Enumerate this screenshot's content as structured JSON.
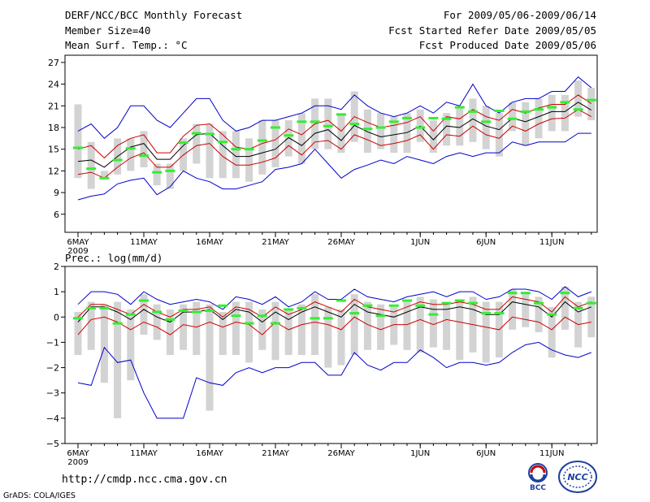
{
  "header": {
    "title": "DERF/NCC/BCC Monthly Forecast",
    "member_size": "Member Size=40",
    "variable1": "Mean Surf. Temp.: °C",
    "period": "For 2009/05/06-2009/06/14",
    "started": "Fcst Started Refer Date 2009/05/05",
    "produced": "Fcst Produced Date 2009/05/06"
  },
  "footer": {
    "url": "http://cmdp.ncc.cma.gov.cn",
    "grads": "GrADS: COLA/IGES",
    "logo1_text": "BCC",
    "logo2_text": "NCC"
  },
  "colors": {
    "envelope": "#0000cc",
    "spread": "#cc0000",
    "mean": "#000000",
    "bar": "#d3d3d3",
    "obs": "#33ee33"
  },
  "chart_data": [
    {
      "type": "line",
      "name": "temperature",
      "title": "Mean Surf. Temp.: °C",
      "ylim": [
        3.5,
        28
      ],
      "yticks": [
        6,
        9,
        12,
        15,
        18,
        21,
        24,
        27
      ],
      "xrange": [
        0,
        40
      ],
      "xticks": [
        {
          "day": 0,
          "label": "6MAY",
          "label2": "2009"
        },
        {
          "day": 5,
          "label": "11MAY"
        },
        {
          "day": 10,
          "label": "16MAY"
        },
        {
          "day": 15,
          "label": "21MAY"
        },
        {
          "day": 20,
          "label": "26MAY"
        },
        {
          "day": 26,
          "label": "1JUN"
        },
        {
          "day": 31,
          "label": "6JUN"
        },
        {
          "day": 36,
          "label": "11JUN"
        }
      ],
      "x": [
        0,
        1,
        2,
        3,
        4,
        5,
        6,
        7,
        8,
        9,
        10,
        11,
        12,
        13,
        14,
        15,
        16,
        17,
        18,
        19,
        20,
        21,
        22,
        23,
        24,
        25,
        26,
        27,
        28,
        29,
        30,
        31,
        32,
        33,
        34,
        35,
        36,
        37,
        38,
        39
      ],
      "series": [
        {
          "name": "max",
          "values": [
            17.5,
            18.5,
            16.5,
            18,
            21,
            21,
            19,
            18,
            20,
            22,
            22,
            19,
            17.5,
            18,
            19,
            19,
            19.5,
            20,
            21,
            21,
            20.5,
            22.5,
            21,
            20,
            19.5,
            20,
            21,
            20,
            21.5,
            21,
            24,
            21,
            20,
            21.5,
            22,
            22,
            23,
            23,
            25,
            23.5
          ]
        },
        {
          "name": "upper",
          "values": [
            15,
            15.5,
            13.8,
            15.5,
            16.5,
            17,
            14.5,
            14.5,
            16.8,
            18.3,
            18.5,
            17,
            15.3,
            15,
            15.8,
            16.3,
            17.8,
            17,
            18.5,
            19,
            17.5,
            19.5,
            18.7,
            18,
            18.3,
            18.7,
            19.5,
            17.5,
            19.5,
            19.2,
            20.5,
            19.5,
            19,
            20.5,
            20,
            20.7,
            21.2,
            21.2,
            22.5,
            21.3
          ]
        },
        {
          "name": "mean",
          "values": [
            13.3,
            13.5,
            12.5,
            14,
            15.3,
            15.8,
            13.6,
            13.6,
            15.5,
            17,
            17.2,
            15.5,
            14,
            14,
            14.5,
            15,
            16.6,
            15.5,
            17.2,
            17.7,
            16.2,
            18.3,
            17.4,
            16.7,
            17,
            17.3,
            18.2,
            16.3,
            18.2,
            18,
            19.2,
            18.2,
            17.7,
            19.3,
            18.8,
            19.5,
            20.2,
            20.2,
            21.5,
            20.4
          ]
        },
        {
          "name": "lower",
          "values": [
            11.5,
            11.8,
            11,
            12.5,
            13.8,
            14.5,
            12.5,
            12.5,
            14.2,
            15.5,
            15.8,
            14,
            12.8,
            12.8,
            13.2,
            13.8,
            15.5,
            14.2,
            16,
            16.2,
            15,
            17,
            16.3,
            15.5,
            15.8,
            16.2,
            17,
            15,
            17,
            16.8,
            18.2,
            17,
            16.5,
            18.2,
            17.5,
            18.5,
            19.2,
            19.3,
            20.5,
            19.5
          ]
        },
        {
          "name": "min",
          "values": [
            8,
            8.5,
            8.8,
            10.2,
            10.7,
            11,
            8.7,
            9.8,
            12,
            11,
            10.5,
            9.5,
            9.5,
            10,
            10.5,
            12.2,
            12.5,
            13,
            15,
            13,
            11,
            12.2,
            12.8,
            13.5,
            13,
            14,
            13.5,
            13,
            14,
            14.5,
            14,
            14.5,
            14.5,
            16,
            15.5,
            16,
            16,
            16,
            17.2,
            17.2
          ]
        },
        {
          "name": "bar_top",
          "values": [
            21.2,
            16,
            12,
            16.5,
            16.5,
            17.5,
            13,
            13,
            16.5,
            18.5,
            18.5,
            17.5,
            17.5,
            16.5,
            19,
            19,
            19,
            20,
            22,
            22,
            20,
            23,
            20.5,
            20,
            19.5,
            20,
            20.5,
            19,
            20,
            21,
            22,
            21,
            20,
            21.5,
            21.5,
            22,
            22.5,
            22.5,
            24.5,
            23.5
          ]
        },
        {
          "name": "bar_bottom",
          "values": [
            11,
            9.5,
            11,
            11.5,
            12,
            12.5,
            10,
            9.5,
            12,
            13,
            11,
            11,
            11,
            10.5,
            11.5,
            12.5,
            14,
            13,
            15,
            15,
            14.5,
            16,
            14.5,
            15,
            14.5,
            14.5,
            16,
            14.5,
            15.5,
            15.5,
            16,
            15,
            14,
            17.5,
            15.5,
            16.5,
            17.5,
            17.5,
            19.5,
            19
          ]
        },
        {
          "name": "obs",
          "values": [
            15.2,
            12.3,
            11,
            13.5,
            15.1,
            14.1,
            11.8,
            12,
            15.9,
            17.2,
            17.1,
            16,
            15,
            15,
            16.2,
            18,
            16.9,
            18.8,
            18.8,
            18.2,
            19.8,
            18.5,
            17.8,
            18,
            18.8,
            19.3,
            18,
            19.3,
            19.2,
            20.8,
            20.2,
            18.8,
            20.3,
            19.2,
            20.2,
            20.5,
            20.8,
            21.5,
            20.5,
            21.8
          ]
        }
      ]
    },
    {
      "type": "line",
      "name": "precipitation",
      "title": "Prec.: log(mm/d)",
      "ylim": [
        -5,
        2
      ],
      "yticks": [
        -5,
        -4,
        -3,
        -2,
        -1,
        0,
        1,
        2
      ],
      "xrange": [
        0,
        40
      ],
      "xticks": [
        {
          "day": 0,
          "label": "6MAY",
          "label2": "2009"
        },
        {
          "day": 5,
          "label": "11MAY"
        },
        {
          "day": 10,
          "label": "16MAY"
        },
        {
          "day": 15,
          "label": "21MAY"
        },
        {
          "day": 20,
          "label": "26MAY"
        },
        {
          "day": 26,
          "label": "1JUN"
        },
        {
          "day": 31,
          "label": "6JUN"
        },
        {
          "day": 36,
          "label": "11JUN"
        }
      ],
      "x": [
        0,
        1,
        2,
        3,
        4,
        5,
        6,
        7,
        8,
        9,
        10,
        11,
        12,
        13,
        14,
        15,
        16,
        17,
        18,
        19,
        20,
        21,
        22,
        23,
        24,
        25,
        26,
        27,
        28,
        29,
        30,
        31,
        32,
        33,
        34,
        35,
        36,
        37,
        38,
        39
      ],
      "series": [
        {
          "name": "max",
          "values": [
            0.5,
            1,
            1,
            0.9,
            0.5,
            1,
            0.7,
            0.5,
            0.6,
            0.7,
            0.6,
            0.3,
            0.8,
            0.7,
            0.5,
            0.8,
            0.4,
            0.6,
            1,
            0.7,
            0.7,
            1.1,
            0.8,
            0.7,
            0.6,
            0.8,
            0.9,
            1,
            0.8,
            1,
            1,
            0.7,
            0.8,
            1.1,
            1.1,
            1,
            0.7,
            1.2,
            0.8,
            1
          ]
        },
        {
          "name": "upper",
          "values": [
            0,
            0.5,
            0.5,
            0.3,
            0.1,
            0.5,
            0.2,
            0,
            0.3,
            0.3,
            0.4,
            0,
            0.4,
            0.3,
            0,
            0.4,
            0.1,
            0.3,
            0.6,
            0.4,
            0.2,
            0.7,
            0.4,
            0.3,
            0.2,
            0.4,
            0.6,
            0.5,
            0.5,
            0.6,
            0.5,
            0.3,
            0.3,
            0.8,
            0.7,
            0.6,
            0.2,
            0.8,
            0.4,
            0.6
          ]
        },
        {
          "name": "mean",
          "values": [
            -0.2,
            0.4,
            0.4,
            0.2,
            -0.1,
            0.3,
            0,
            -0.2,
            0.2,
            0.2,
            0.3,
            -0.1,
            0.3,
            0.2,
            -0.2,
            0.2,
            -0.1,
            0.2,
            0.4,
            0.2,
            0,
            0.5,
            0.2,
            0.1,
            0,
            0.2,
            0.4,
            0.3,
            0.3,
            0.4,
            0.3,
            0.1,
            0.1,
            0.6,
            0.5,
            0.4,
            0,
            0.6,
            0.2,
            0.4
          ]
        },
        {
          "name": "lower",
          "values": [
            -0.7,
            -0.1,
            0,
            -0.2,
            -0.5,
            -0.2,
            -0.4,
            -0.7,
            -0.3,
            -0.4,
            -0.2,
            -0.4,
            -0.2,
            -0.3,
            -0.7,
            -0.2,
            -0.5,
            -0.3,
            -0.2,
            -0.3,
            -0.5,
            0,
            -0.3,
            -0.5,
            -0.3,
            -0.3,
            -0.1,
            -0.3,
            -0.1,
            -0.2,
            -0.3,
            -0.4,
            -0.5,
            0,
            -0.1,
            -0.2,
            -0.5,
            0,
            -0.3,
            -0.2
          ]
        },
        {
          "name": "min",
          "values": [
            -2.6,
            -2.7,
            -1.2,
            -1.8,
            -1.7,
            -3,
            -4,
            -4,
            -4,
            -2.4,
            -2.6,
            -2.7,
            -2.2,
            -2,
            -2.2,
            -2,
            -2,
            -1.8,
            -1.8,
            -2.3,
            -2.3,
            -1.4,
            -1.9,
            -2.1,
            -1.8,
            -1.8,
            -1.3,
            -1.6,
            -2,
            -1.8,
            -1.8,
            -1.9,
            -1.8,
            -1.4,
            -1.1,
            -1,
            -1.3,
            -1.5,
            -1.6,
            -1.4
          ]
        },
        {
          "name": "bar_top",
          "values": [
            0.2,
            0.6,
            0.5,
            0.6,
            0.3,
            0.9,
            0.5,
            0.3,
            0.5,
            0.6,
            0.5,
            0.2,
            0.6,
            0.6,
            0.3,
            0.6,
            0.3,
            0.5,
            0.9,
            0.4,
            0.3,
            0.9,
            0.6,
            0.5,
            0.4,
            0.6,
            0.8,
            0.7,
            0.6,
            0.7,
            0.8,
            0.6,
            0.6,
            1.1,
            1,
            0.8,
            0.4,
            1.2,
            0.6,
            0.8
          ]
        },
        {
          "name": "bar_bottom",
          "values": [
            -1.5,
            -1.3,
            -2.6,
            -4,
            -2.5,
            -0.7,
            -0.9,
            -1.5,
            -1.3,
            -1.5,
            -3.7,
            -1.5,
            -1.5,
            -1.8,
            -1.3,
            -1.7,
            -1.5,
            -1.5,
            -1.5,
            -2,
            -1.9,
            -1.5,
            -1.3,
            -1.3,
            -1.1,
            -1.3,
            -1.4,
            -1.2,
            -1.3,
            -1.7,
            -1.4,
            -1.8,
            -1.6,
            -0.5,
            -0.4,
            -0.6,
            -1.6,
            -0.5,
            -1.2,
            -0.8
          ]
        },
        {
          "name": "obs",
          "values": [
            -0.05,
            0.35,
            0.35,
            -0.25,
            0.1,
            0.65,
            0.2,
            -0.1,
            0.25,
            0.2,
            0.25,
            0.45,
            0.05,
            -0.25,
            0.05,
            -0.25,
            0.3,
            0.35,
            -0.05,
            -0.05,
            0.65,
            0.15,
            0.45,
            0.05,
            0.45,
            0.65,
            0.45,
            0.1,
            0.55,
            0.65,
            0.55,
            0.15,
            0.15,
            0.95,
            0.95,
            0.55,
            0.1,
            0.95,
            0.35,
            0.55
          ]
        }
      ]
    }
  ]
}
